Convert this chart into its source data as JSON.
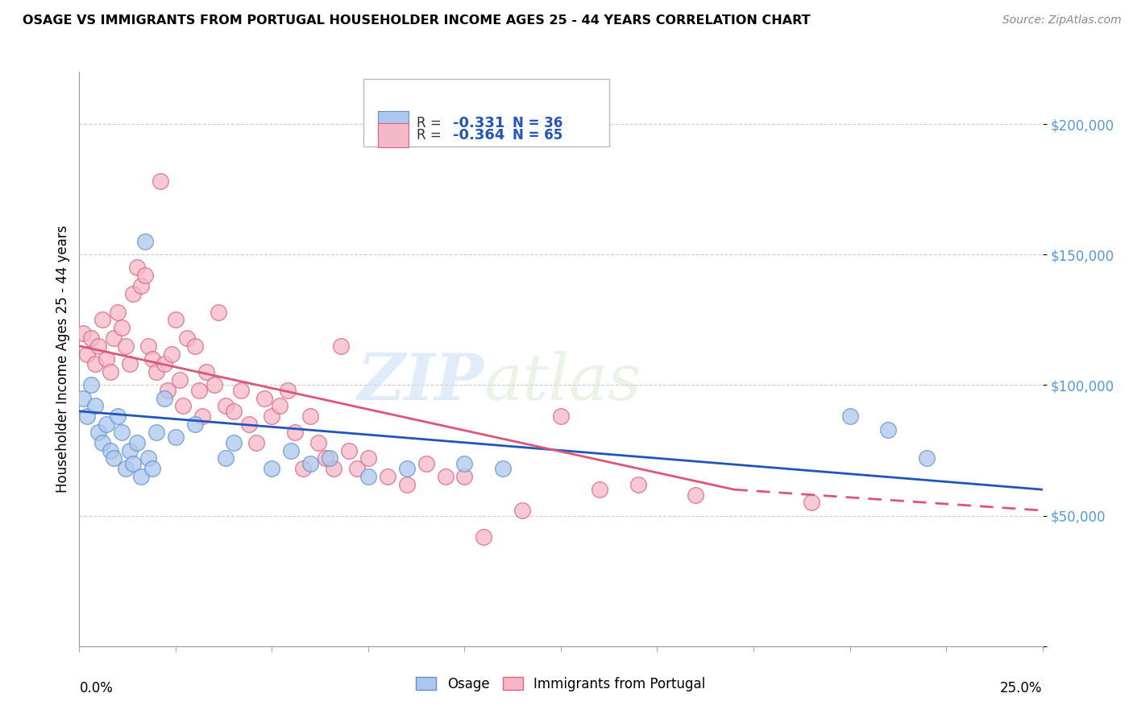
{
  "title": "OSAGE VS IMMIGRANTS FROM PORTUGAL HOUSEHOLDER INCOME AGES 25 - 44 YEARS CORRELATION CHART",
  "source": "Source: ZipAtlas.com",
  "ylabel": "Householder Income Ages 25 - 44 years",
  "yticks": [
    0,
    50000,
    100000,
    150000,
    200000
  ],
  "ytick_labels": [
    "",
    "$50,000",
    "$100,000",
    "$150,000",
    "$200,000"
  ],
  "xmin": 0.0,
  "xmax": 0.25,
  "ymin": 0,
  "ymax": 220000,
  "osage_R": "-0.331",
  "osage_N": "36",
  "portugal_R": "-0.364",
  "portugal_N": "65",
  "watermark_zip": "ZIP",
  "watermark_atlas": "atlas",
  "legend_label_osage": "Osage",
  "legend_label_portugal": "Immigrants from Portugal",
  "osage_color": "#adc8ee",
  "portugal_color": "#f4b8c8",
  "osage_edge_color": "#6090d0",
  "portugal_edge_color": "#e06080",
  "osage_line_color": "#2255bb",
  "portugal_line_color": "#dd5577",
  "background_color": "#ffffff",
  "grid_color": "#cccccc",
  "ytick_color": "#5599dd",
  "osage_scatter": [
    [
      0.001,
      95000
    ],
    [
      0.002,
      88000
    ],
    [
      0.003,
      100000
    ],
    [
      0.004,
      92000
    ],
    [
      0.005,
      82000
    ],
    [
      0.006,
      78000
    ],
    [
      0.007,
      85000
    ],
    [
      0.008,
      75000
    ],
    [
      0.009,
      72000
    ],
    [
      0.01,
      88000
    ],
    [
      0.011,
      82000
    ],
    [
      0.012,
      68000
    ],
    [
      0.013,
      75000
    ],
    [
      0.014,
      70000
    ],
    [
      0.015,
      78000
    ],
    [
      0.016,
      65000
    ],
    [
      0.017,
      155000
    ],
    [
      0.018,
      72000
    ],
    [
      0.019,
      68000
    ],
    [
      0.02,
      82000
    ],
    [
      0.022,
      95000
    ],
    [
      0.025,
      80000
    ],
    [
      0.03,
      85000
    ],
    [
      0.038,
      72000
    ],
    [
      0.04,
      78000
    ],
    [
      0.05,
      68000
    ],
    [
      0.055,
      75000
    ],
    [
      0.06,
      70000
    ],
    [
      0.065,
      72000
    ],
    [
      0.075,
      65000
    ],
    [
      0.085,
      68000
    ],
    [
      0.1,
      70000
    ],
    [
      0.11,
      68000
    ],
    [
      0.2,
      88000
    ],
    [
      0.21,
      83000
    ],
    [
      0.22,
      72000
    ]
  ],
  "portugal_scatter": [
    [
      0.001,
      120000
    ],
    [
      0.002,
      112000
    ],
    [
      0.003,
      118000
    ],
    [
      0.004,
      108000
    ],
    [
      0.005,
      115000
    ],
    [
      0.006,
      125000
    ],
    [
      0.007,
      110000
    ],
    [
      0.008,
      105000
    ],
    [
      0.009,
      118000
    ],
    [
      0.01,
      128000
    ],
    [
      0.011,
      122000
    ],
    [
      0.012,
      115000
    ],
    [
      0.013,
      108000
    ],
    [
      0.014,
      135000
    ],
    [
      0.015,
      145000
    ],
    [
      0.016,
      138000
    ],
    [
      0.017,
      142000
    ],
    [
      0.018,
      115000
    ],
    [
      0.019,
      110000
    ],
    [
      0.02,
      105000
    ],
    [
      0.021,
      178000
    ],
    [
      0.022,
      108000
    ],
    [
      0.023,
      98000
    ],
    [
      0.024,
      112000
    ],
    [
      0.025,
      125000
    ],
    [
      0.026,
      102000
    ],
    [
      0.027,
      92000
    ],
    [
      0.028,
      118000
    ],
    [
      0.03,
      115000
    ],
    [
      0.031,
      98000
    ],
    [
      0.032,
      88000
    ],
    [
      0.033,
      105000
    ],
    [
      0.035,
      100000
    ],
    [
      0.036,
      128000
    ],
    [
      0.038,
      92000
    ],
    [
      0.04,
      90000
    ],
    [
      0.042,
      98000
    ],
    [
      0.044,
      85000
    ],
    [
      0.046,
      78000
    ],
    [
      0.048,
      95000
    ],
    [
      0.05,
      88000
    ],
    [
      0.052,
      92000
    ],
    [
      0.054,
      98000
    ],
    [
      0.056,
      82000
    ],
    [
      0.058,
      68000
    ],
    [
      0.06,
      88000
    ],
    [
      0.062,
      78000
    ],
    [
      0.064,
      72000
    ],
    [
      0.066,
      68000
    ],
    [
      0.068,
      115000
    ],
    [
      0.07,
      75000
    ],
    [
      0.072,
      68000
    ],
    [
      0.075,
      72000
    ],
    [
      0.08,
      65000
    ],
    [
      0.085,
      62000
    ],
    [
      0.09,
      70000
    ],
    [
      0.095,
      65000
    ],
    [
      0.1,
      65000
    ],
    [
      0.105,
      42000
    ],
    [
      0.115,
      52000
    ],
    [
      0.125,
      88000
    ],
    [
      0.135,
      60000
    ],
    [
      0.145,
      62000
    ],
    [
      0.16,
      58000
    ],
    [
      0.19,
      55000
    ]
  ]
}
